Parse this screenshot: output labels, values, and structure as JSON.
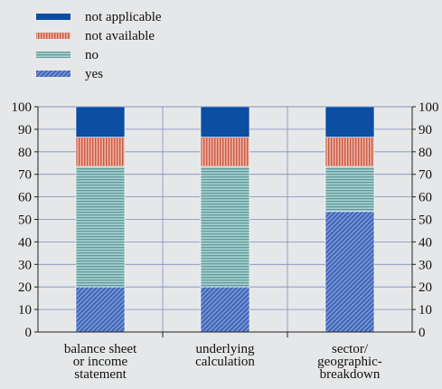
{
  "chart_data": {
    "type": "bar",
    "stacked": true,
    "categories": [
      [
        "balance sheet",
        "or income",
        "statement"
      ],
      [
        "underlying",
        "calculation"
      ],
      [
        "sector/",
        "geographic-",
        "breakdown"
      ]
    ],
    "series": [
      {
        "name": "yes",
        "values": [
          20,
          20,
          53.5
        ],
        "color": "#5b7fc7",
        "pattern": "diagonal-hatch"
      },
      {
        "name": "no",
        "values": [
          53.5,
          53.5,
          20
        ],
        "color": "#7fb3b3",
        "pattern": "horizontal-lines"
      },
      {
        "name": "not available",
        "values": [
          13,
          13,
          13
        ],
        "color": "#d9786a",
        "pattern": "vertical-lines"
      },
      {
        "name": "not applicable",
        "values": [
          13.5,
          13.5,
          13.5
        ],
        "color": "#0b4ea2",
        "pattern": "solid"
      }
    ],
    "legend_order": [
      "not applicable",
      "not available",
      "no",
      "yes"
    ],
    "legend_position": "top-left",
    "ylim": [
      0,
      100
    ],
    "yticks": [
      0,
      10,
      20,
      30,
      40,
      50,
      60,
      70,
      80,
      90,
      100
    ],
    "y_axis_both_sides": true,
    "grid": true
  }
}
